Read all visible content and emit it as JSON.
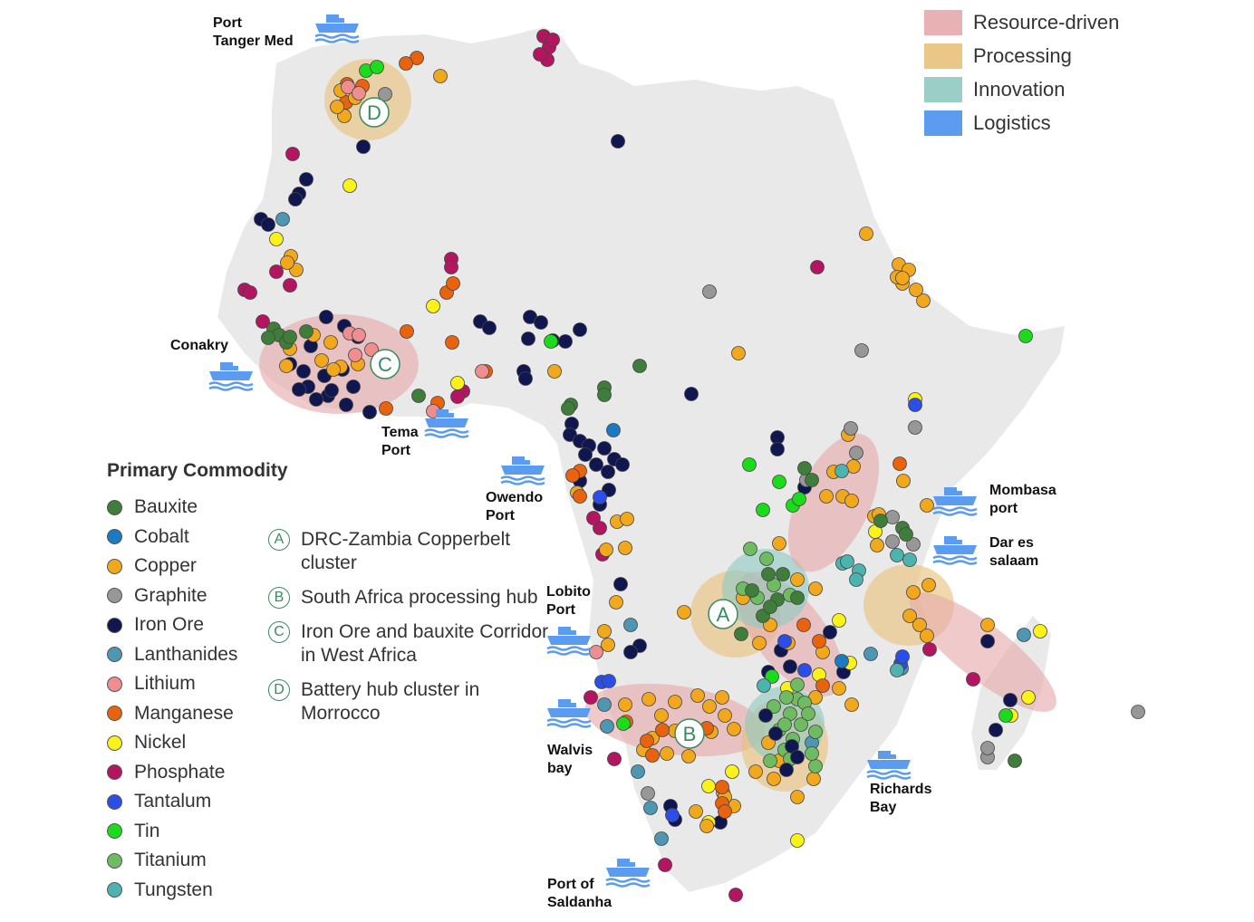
{
  "colors": {
    "land": "#e9e9e9",
    "zones": {
      "Resource-driven": "#e6a9ab",
      "Processing": "#e8c17a",
      "Innovation": "#8fc9c1",
      "Logistics": "#5b9bf0"
    },
    "commodities": {
      "Bauxite": "#3f7d3a",
      "Cobalt": "#1c7ac2",
      "Copper": "#f2a81d",
      "Graphite": "#979797",
      "Iron Ore": "#101650",
      "Lanthanides": "#4e97b3",
      "Lithium": "#ef8d8f",
      "Manganese": "#e9620d",
      "Nickel": "#fbf21a",
      "Phosphate": "#b41561",
      "Tantalum": "#2b4ee8",
      "Tin": "#1bdc1b",
      "Titanium": "#6fbb62",
      "Tungsten": "#4db3ae"
    }
  },
  "zone_legend": [
    {
      "label": "Resource-driven",
      "key": "Resource-driven"
    },
    {
      "label": "Processing",
      "key": "Processing"
    },
    {
      "label": "Innovation",
      "key": "Innovation"
    },
    {
      "label": "Logistics",
      "key": "Logistics"
    }
  ],
  "commodity_legend": {
    "title": "Primary Commodity",
    "items": [
      "Bauxite",
      "Cobalt",
      "Copper",
      "Graphite",
      "Iron Ore",
      "Lanthanides",
      "Lithium",
      "Manganese",
      "Nickel",
      "Phosphate",
      "Tantalum",
      "Tin",
      "Titanium",
      "Tungsten"
    ]
  },
  "clusters": [
    {
      "letter": "A",
      "label": "DRC-Zambia Copperbelt cluster"
    },
    {
      "letter": "B",
      "label": "South Africa processing hub"
    },
    {
      "letter": "C",
      "label": "Iron Ore and bauxite Corridor in West Africa"
    },
    {
      "letter": "D",
      "label": "Battery hub cluster in Morrocco"
    }
  ],
  "ports": [
    {
      "id": "tanger",
      "line1": "Port",
      "line2": "Tanger Med"
    },
    {
      "id": "conakry",
      "line1": "Conakry",
      "line2": ""
    },
    {
      "id": "tema",
      "line1": "Tema",
      "line2": "Port"
    },
    {
      "id": "owendo",
      "line1": "Owendo",
      "line2": "Port"
    },
    {
      "id": "lobito",
      "line1": "Lobito",
      "line2": "Port"
    },
    {
      "id": "walvis",
      "line1": "Walvis",
      "line2": "bay"
    },
    {
      "id": "saldanha",
      "line1": "Port of",
      "line2": "Saldanha"
    },
    {
      "id": "richards",
      "line1": "Richards",
      "line2": "Bay"
    },
    {
      "id": "mombasa",
      "line1": "Mombasa",
      "line2": "port"
    },
    {
      "id": "dar",
      "line1": "Dar es",
      "line2": "salaam"
    }
  ]
}
